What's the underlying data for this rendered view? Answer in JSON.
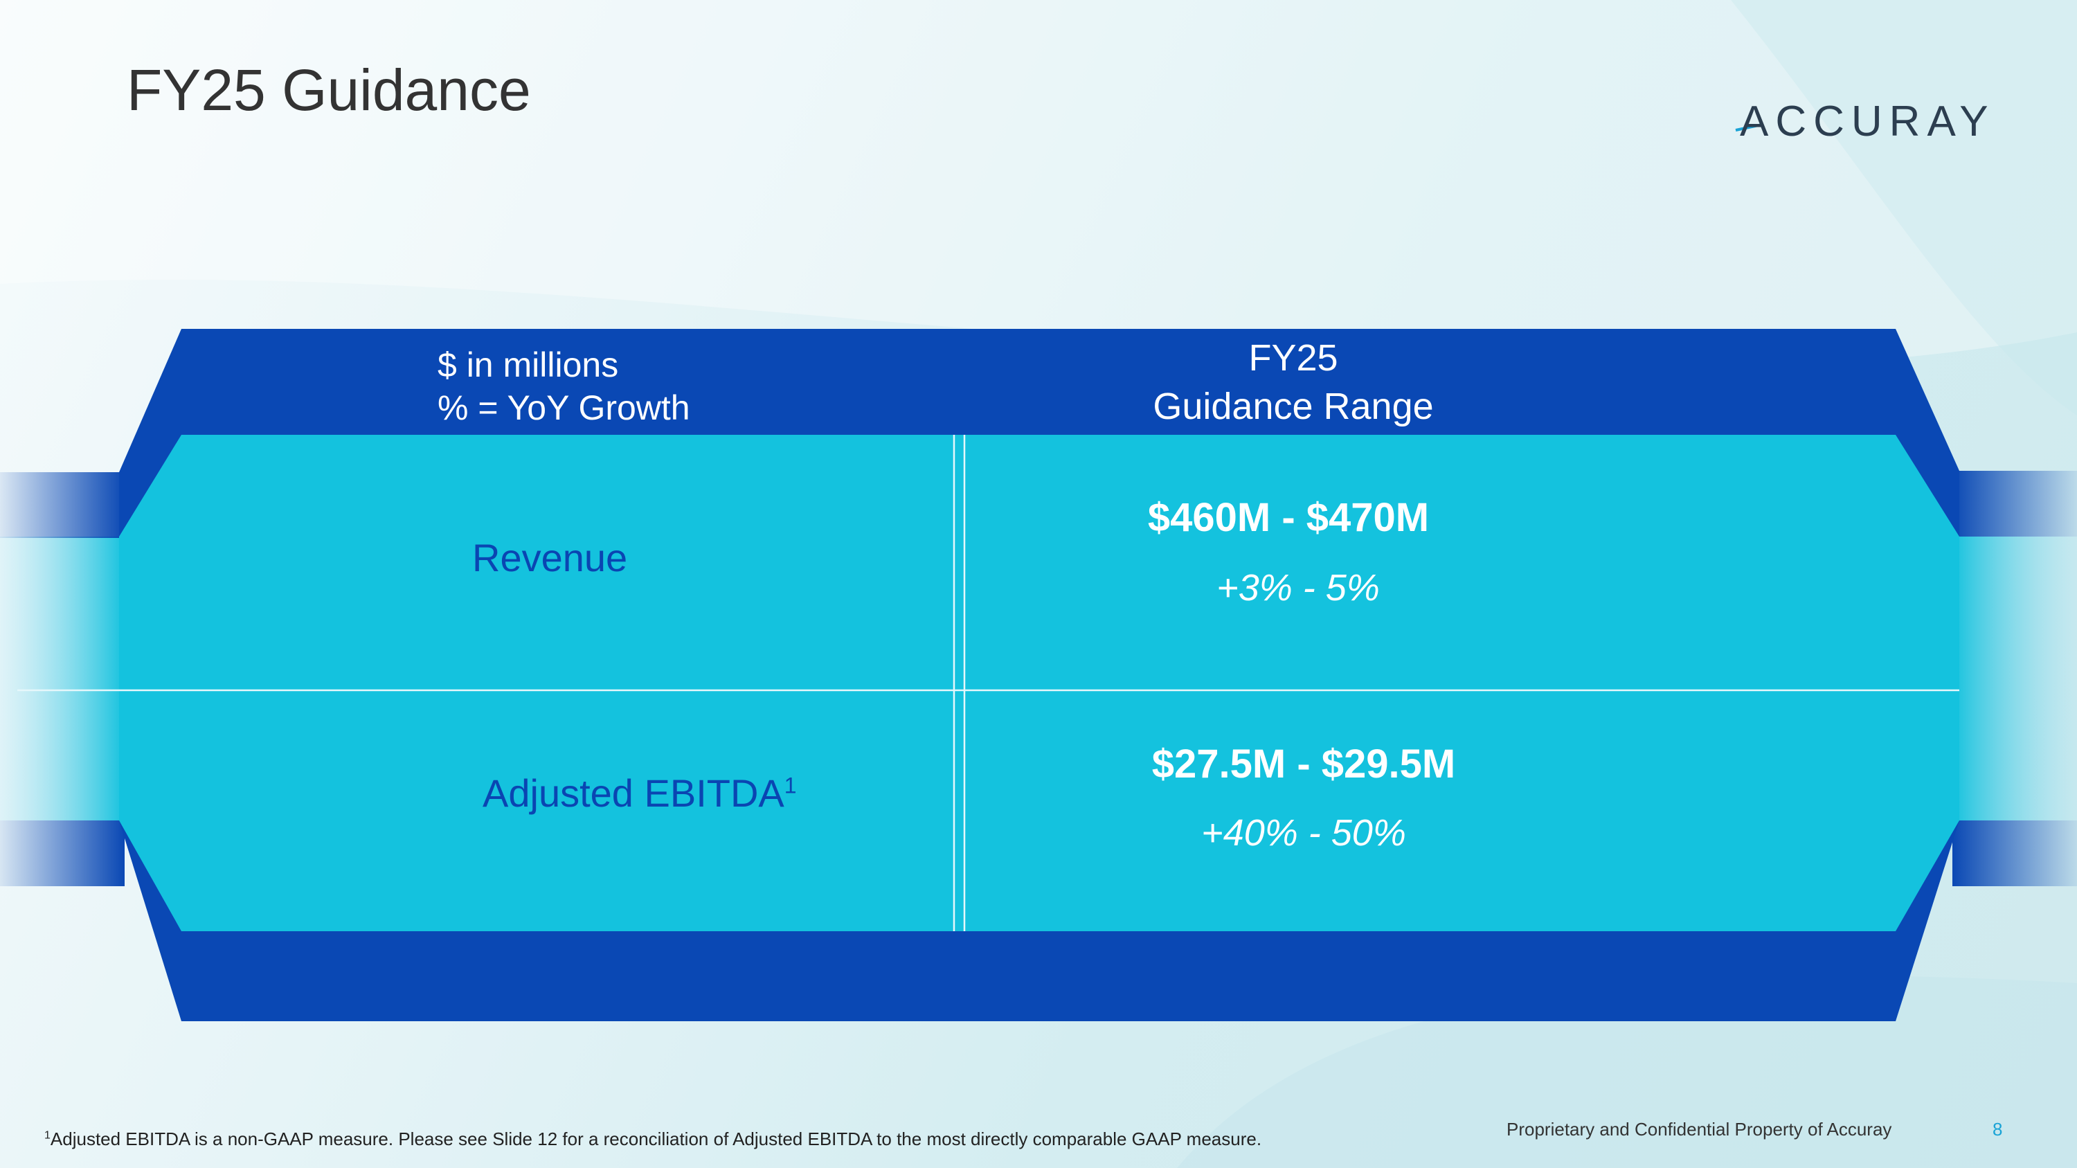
{
  "slide": {
    "title": "FY25 Guidance",
    "logo_text": "ACCURAY"
  },
  "table": {
    "header_units_line1": "$ in millions",
    "header_units_line2": "% = YoY Growth",
    "header_period_line1": "FY25",
    "header_period_line2": "Guidance Range",
    "rows": [
      {
        "label": "Revenue",
        "footnote_marker": "",
        "range": "$460M - $470M",
        "growth": "+3% - 5%"
      },
      {
        "label": "Adjusted EBITDA",
        "footnote_marker": "1",
        "range": "$27.5M - $29.5M",
        "growth": "+40% - 50%"
      }
    ]
  },
  "footer": {
    "footnote_marker": "1",
    "footnote_text": "Adjusted EBITDA is a non-GAAP measure.  Please see Slide 12 for a reconciliation of Adjusted EBITDA to the most directly comparable GAAP measure.",
    "confidential": "Proprietary and Confidential Property of Accuray",
    "page_number": "8"
  },
  "colors": {
    "dark_blue": "#0a48b4",
    "cyan_band": "#14c2de",
    "title_text": "#333333",
    "page_number": "#1aa3d6"
  }
}
